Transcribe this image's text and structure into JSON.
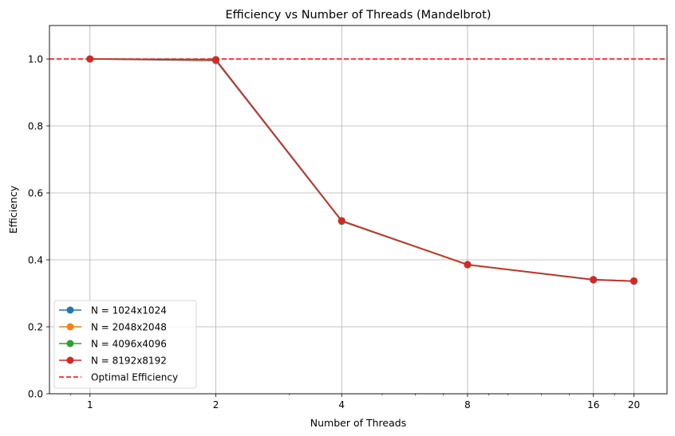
{
  "chart_data": {
    "type": "line",
    "title": "Efficiency vs Number of Threads (Mandelbrot)",
    "xlabel": "Number of Threads",
    "ylabel": "Efficiency",
    "x_scale": "log2",
    "x": [
      1,
      2,
      4,
      8,
      16,
      20
    ],
    "x_tick_labels": [
      "1",
      "2",
      "4",
      "8",
      "16",
      "20"
    ],
    "xlim": [
      0.8,
      24
    ],
    "ylim": [
      0.0,
      1.1
    ],
    "y_ticks": [
      0.0,
      0.2,
      0.4,
      0.6,
      0.8,
      1.0
    ],
    "y_tick_labels": [
      "0.0",
      "0.2",
      "0.4",
      "0.6",
      "0.8",
      "1.0"
    ],
    "grid": true,
    "legend_position": "lower-left",
    "series": [
      {
        "name": "N = 1024x1024",
        "color": "#1f77b4",
        "marker": "circle",
        "values": [
          1.0,
          0.995,
          0.515,
          0.385,
          0.34,
          0.336
        ]
      },
      {
        "name": "N = 2048x2048",
        "color": "#ff7f0e",
        "marker": "circle",
        "values": [
          1.0,
          0.997,
          0.516,
          0.385,
          0.341,
          0.337
        ]
      },
      {
        "name": "N = 4096x4096",
        "color": "#2ca02c",
        "marker": "circle",
        "values": [
          1.0,
          0.998,
          0.516,
          0.386,
          0.341,
          0.337
        ]
      },
      {
        "name": "N = 8192x8192",
        "color": "#d62728",
        "marker": "circle",
        "values": [
          1.0,
          0.998,
          0.517,
          0.386,
          0.341,
          0.337
        ]
      }
    ],
    "reference_line": {
      "name": "Optimal Efficiency",
      "y": 1.0,
      "color": "#ff0000",
      "style": "dashed"
    }
  }
}
